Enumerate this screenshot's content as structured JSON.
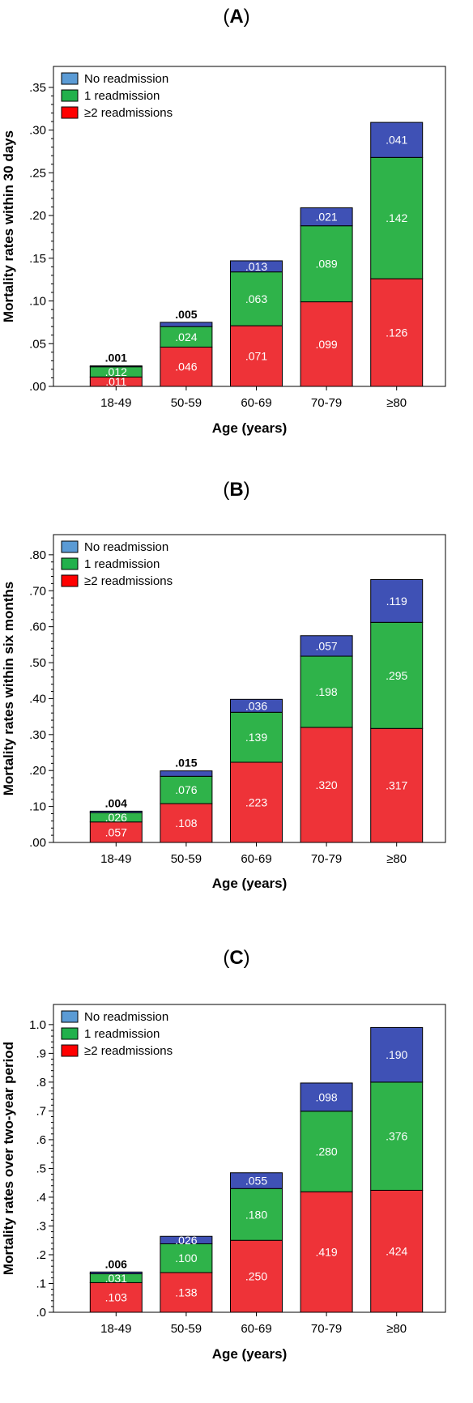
{
  "chart_data": [
    {
      "type": "bar",
      "stacked": true,
      "title": "(A)",
      "title_letter": "A",
      "xlabel": "Age (years)",
      "ylabel": "Mortality rates within 30 days",
      "ylim": [
        0,
        0.35
      ],
      "yticks": [
        0,
        0.05,
        0.1,
        0.15,
        0.2,
        0.25,
        0.3,
        0.35
      ],
      "ytick_labels": [
        ".00",
        ".05",
        ".10",
        ".15",
        ".20",
        ".25",
        ".30",
        ".35"
      ],
      "legend_position": "top-left",
      "categories": [
        "18-49",
        "50-59",
        "60-69",
        "70-79",
        "≥80"
      ],
      "series": [
        {
          "name": "≥2 readmissions",
          "values": [
            0.011,
            0.046,
            0.071,
            0.099,
            0.126
          ],
          "labels": [
            ".011",
            ".046",
            ".071",
            ".099",
            ".126"
          ]
        },
        {
          "name": "1 readmission",
          "values": [
            0.012,
            0.024,
            0.063,
            0.089,
            0.142
          ],
          "labels": [
            ".012",
            ".024",
            ".063",
            ".089",
            ".142"
          ]
        },
        {
          "name": "No readmission",
          "values": [
            0.001,
            0.005,
            0.013,
            0.021,
            0.041
          ],
          "labels": [
            ".001",
            ".005",
            ".013",
            ".021",
            ".041"
          ]
        }
      ]
    },
    {
      "type": "bar",
      "stacked": true,
      "title": "(B)",
      "title_letter": "B",
      "xlabel": "Age (years)",
      "ylabel": "Mortality rates within six months",
      "ylim": [
        0,
        0.8
      ],
      "yticks": [
        0,
        0.1,
        0.2,
        0.3,
        0.4,
        0.5,
        0.6,
        0.7,
        0.8
      ],
      "ytick_labels": [
        ".00",
        ".10",
        ".20",
        ".30",
        ".40",
        ".50",
        ".60",
        ".70",
        ".80"
      ],
      "legend_position": "top-left",
      "categories": [
        "18-49",
        "50-59",
        "60-69",
        "70-79",
        "≥80"
      ],
      "series": [
        {
          "name": "≥2 readmissions",
          "values": [
            0.057,
            0.108,
            0.223,
            0.32,
            0.317
          ],
          "labels": [
            ".057",
            ".108",
            ".223",
            ".320",
            ".317"
          ]
        },
        {
          "name": "1 readmission",
          "values": [
            0.026,
            0.076,
            0.139,
            0.198,
            0.295
          ],
          "labels": [
            ".026",
            ".076",
            ".139",
            ".198",
            ".295"
          ]
        },
        {
          "name": "No readmission",
          "values": [
            0.004,
            0.015,
            0.036,
            0.057,
            0.119
          ],
          "labels": [
            ".004",
            ".015",
            ".036",
            ".057",
            ".119"
          ]
        }
      ]
    },
    {
      "type": "bar",
      "stacked": true,
      "title": "(C)",
      "title_letter": "C",
      "xlabel": "Age (years)",
      "ylabel": "Mortality rates over two-year period",
      "ylim": [
        0,
        1.0
      ],
      "yticks": [
        0,
        0.1,
        0.2,
        0.3,
        0.4,
        0.5,
        0.6,
        0.7,
        0.8,
        0.9,
        1.0
      ],
      "ytick_labels": [
        ".0",
        ".1",
        ".2",
        ".3",
        ".4",
        ".5",
        ".6",
        ".7",
        ".8",
        ".9",
        "1.0"
      ],
      "legend_position": "top-left",
      "categories": [
        "18-49",
        "50-59",
        "60-69",
        "70-79",
        "≥80"
      ],
      "series": [
        {
          "name": "≥2 readmissions",
          "values": [
            0.103,
            0.138,
            0.25,
            0.419,
            0.424
          ],
          "labels": [
            ".103",
            ".138",
            ".250",
            ".419",
            ".424"
          ]
        },
        {
          "name": "1 readmission",
          "values": [
            0.031,
            0.1,
            0.18,
            0.28,
            0.376
          ],
          "labels": [
            ".031",
            ".100",
            ".180",
            ".280",
            ".376"
          ]
        },
        {
          "name": "No readmission",
          "values": [
            0.006,
            0.026,
            0.055,
            0.098,
            0.19
          ],
          "labels": [
            ".006",
            ".026",
            ".055",
            ".098",
            ".190"
          ]
        }
      ]
    }
  ],
  "legend": {
    "items": [
      {
        "name": "No readmission",
        "swatch_color": "#5b9bd5"
      },
      {
        "name": "1 readmission",
        "swatch_color": "#22b14c"
      },
      {
        "name": "≥2 readmissions",
        "swatch_color": "#ff0000"
      }
    ]
  },
  "colors": {
    "no_readmission_bar": "#3f51b5",
    "one_readmission_bar": "#2fb34a",
    "two_plus_readmissions_bar": "#ee3338",
    "bar_outline": "#000000",
    "frame": "#000000"
  }
}
